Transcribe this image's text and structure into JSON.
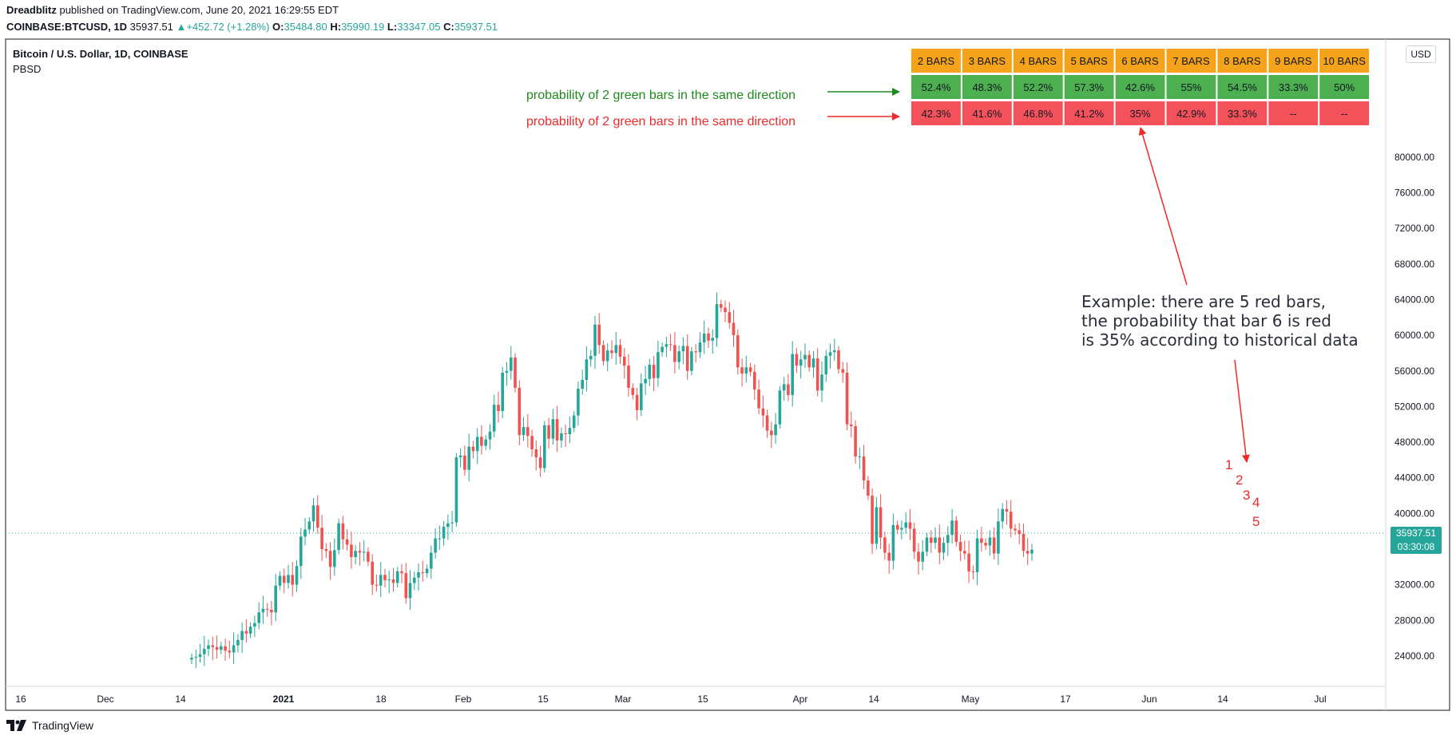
{
  "header": {
    "author": "Dreadblitz",
    "published": "published on TradingView.com, June 20, 2021 16:29:55 EDT",
    "symbol": "COINBASE:BTCUSD, 1D",
    "last": "35937.51",
    "change": "+452.72 (+1.28%)",
    "open_label": "O:",
    "open": "35484.80",
    "high_label": "H:",
    "high": "35990.19",
    "low_label": "L:",
    "low": "33347.05",
    "close_label": "C:",
    "close": "35937.51"
  },
  "chart_title": "Bitcoin / U.S. Dollar, 1D, COINBASE",
  "indicator": "PBSD",
  "currency": "USD",
  "price_tag": {
    "price": "35937.51",
    "countdown": "03:30:08"
  },
  "footer": {
    "brand": "TradingView"
  },
  "table": {
    "headers": [
      "2 BARS",
      "3 BARS",
      "4 BARS",
      "5 BARS",
      "6 BARS",
      "7 BARS",
      "8 BARS",
      "9 BARS",
      "10 BARS"
    ],
    "green_row": [
      "52.4%",
      "48.3%",
      "52.2%",
      "57.3%",
      "42.6%",
      "55%",
      "54.5%",
      "33.3%",
      "50%"
    ],
    "red_row": [
      "42.3%",
      "41.6%",
      "46.8%",
      "41.2%",
      "35%",
      "42.9%",
      "33.3%",
      "--",
      "--"
    ],
    "header_color": "#f5a31a",
    "green_color": "#4caf50",
    "red_color": "#f4525a"
  },
  "annotations": {
    "green": "probability of 2 green bars in the same direction",
    "red": "probability of 2 green bars in the same direction",
    "example": "Example: there are 5 red bars,\nthe probability that bar 6 is red\nis 35% according to historical data",
    "bar_numbers": [
      "1",
      "2",
      "3",
      "4",
      "5"
    ]
  },
  "chart_data": {
    "type": "candlestick",
    "title": "Bitcoin / U.S. Dollar, 1D, COINBASE",
    "y_ticks": [
      24000,
      28000,
      32000,
      36000,
      40000,
      44000,
      48000,
      52000,
      56000,
      60000,
      64000,
      68000,
      72000,
      76000,
      80000
    ],
    "y_tick_labels": [
      "24000.00",
      "28000.00",
      "32000.00",
      "36000.00",
      "40000.00",
      "44000.00",
      "48000.00",
      "52000.00",
      "56000.00",
      "60000.00",
      "64000.00",
      "68000.00",
      "72000.00",
      "76000.00",
      "80000.00"
    ],
    "ylim": [
      21800,
      82400
    ],
    "x_labels": [
      "16",
      "Dec",
      "14",
      "2021",
      "18",
      "Feb",
      "15",
      "Mar",
      "15",
      "Apr",
      "14",
      "May",
      "17",
      "Jun",
      "14",
      "Jul"
    ],
    "x_label_positions": [
      26,
      132,
      226,
      355,
      477,
      580,
      680,
      780,
      880,
      1002,
      1094,
      1215,
      1334,
      1439,
      1531,
      1653
    ],
    "current_price": 35937.51,
    "closes": [
      23800,
      23900,
      24200,
      24800,
      25200,
      25000,
      24700,
      25100,
      24600,
      24400,
      25200,
      25800,
      26800,
      26500,
      27300,
      27700,
      28900,
      29300,
      29200,
      28900,
      31900,
      33000,
      32200,
      33100,
      32000,
      34100,
      37400,
      38200,
      39100,
      40900,
      38400,
      36000,
      35800,
      34000,
      35900,
      38900,
      37100,
      36500,
      35100,
      35800,
      35600,
      35700,
      34600,
      32000,
      31900,
      33100,
      32500,
      32600,
      32200,
      33500,
      33300,
      30500,
      32200,
      32800,
      33400,
      33300,
      33800,
      35600,
      37200,
      37200,
      38500,
      38900,
      39000,
      46300,
      46500,
      44900,
      47500,
      47000,
      48600,
      47600,
      48300,
      49200,
      52200,
      51500,
      55800,
      56000,
      57500,
      54100,
      48800,
      49700,
      48700,
      47200,
      46300,
      45100,
      49900,
      48400,
      50600,
      48200,
      49000,
      48900,
      49600,
      51000,
      54000,
      55000,
      57300,
      57700,
      61200,
      58900,
      57100,
      58300,
      58000,
      58900,
      57600,
      56600,
      54100,
      53300,
      51600,
      54600,
      55100,
      56700,
      55200,
      58100,
      58700,
      59000,
      58900,
      57000,
      58200,
      58800,
      56000,
      58200,
      58100,
      59200,
      60200,
      59400,
      59700,
      63500,
      63100,
      62600,
      61400,
      60000,
      56400,
      55700,
      56400,
      55900,
      53900,
      51800,
      51000,
      49300,
      48800,
      50000,
      53800,
      54500,
      53300,
      57900,
      56600,
      57300,
      57800,
      56400,
      57400,
      53800,
      55600,
      57700,
      58100,
      58300,
      56200,
      55800,
      50000,
      49800,
      46400,
      46400,
      43700,
      42000,
      36600,
      40700,
      37300,
      35600,
      34700,
      38700,
      38200,
      38400,
      39000,
      38300,
      35700,
      34600,
      35700,
      37300,
      36700,
      37300,
      35600,
      36700,
      37600,
      39200,
      36800,
      35800,
      35500,
      33500,
      33400,
      37200,
      36700,
      36400,
      37300,
      35500,
      39100,
      40500,
      40200,
      38300,
      38100,
      37700,
      35800,
      35500,
      35937
    ]
  }
}
